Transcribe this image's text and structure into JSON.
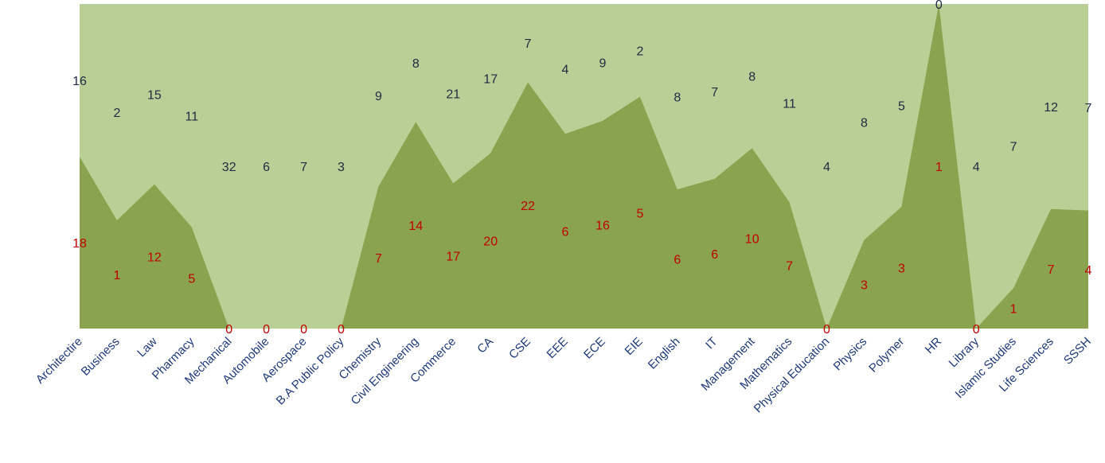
{
  "chart_data": {
    "type": "area",
    "stacking": "percent",
    "categories": [
      "Architectire",
      "Business",
      "Law",
      "Pharmacy",
      "Mechanical",
      "Automobile",
      "Aerospace",
      "B.A Public Policy",
      "Chemistry",
      "Civil Engineering",
      "Commerce",
      "CA",
      "CSE",
      "EEE",
      "ECE",
      "EIE",
      "English",
      "IT",
      "Management",
      "Mathematics",
      "Physical Education",
      "Physics",
      "Polymer",
      "HR",
      "Library",
      "Islamic Studies",
      "Life Sciences",
      "SSSH"
    ],
    "series": [
      {
        "color": "#8aa34e",
        "values": [
          18,
          1,
          12,
          5,
          0,
          0,
          0,
          0,
          7,
          14,
          17,
          20,
          22,
          6,
          16,
          5,
          6,
          6,
          10,
          7,
          0,
          3,
          3,
          1,
          0,
          1,
          7,
          4
        ]
      },
      {
        "color": "#b9cf95",
        "values": [
          16,
          2,
          15,
          11,
          32,
          6,
          7,
          3,
          9,
          8,
          21,
          17,
          7,
          4,
          9,
          2,
          8,
          7,
          8,
          11,
          4,
          8,
          5,
          0,
          4,
          7,
          12,
          7
        ]
      }
    ],
    "title": "",
    "xlabel": "",
    "ylabel": "",
    "ylim": [
      0,
      1
    ],
    "grid": false,
    "legend": "none"
  }
}
